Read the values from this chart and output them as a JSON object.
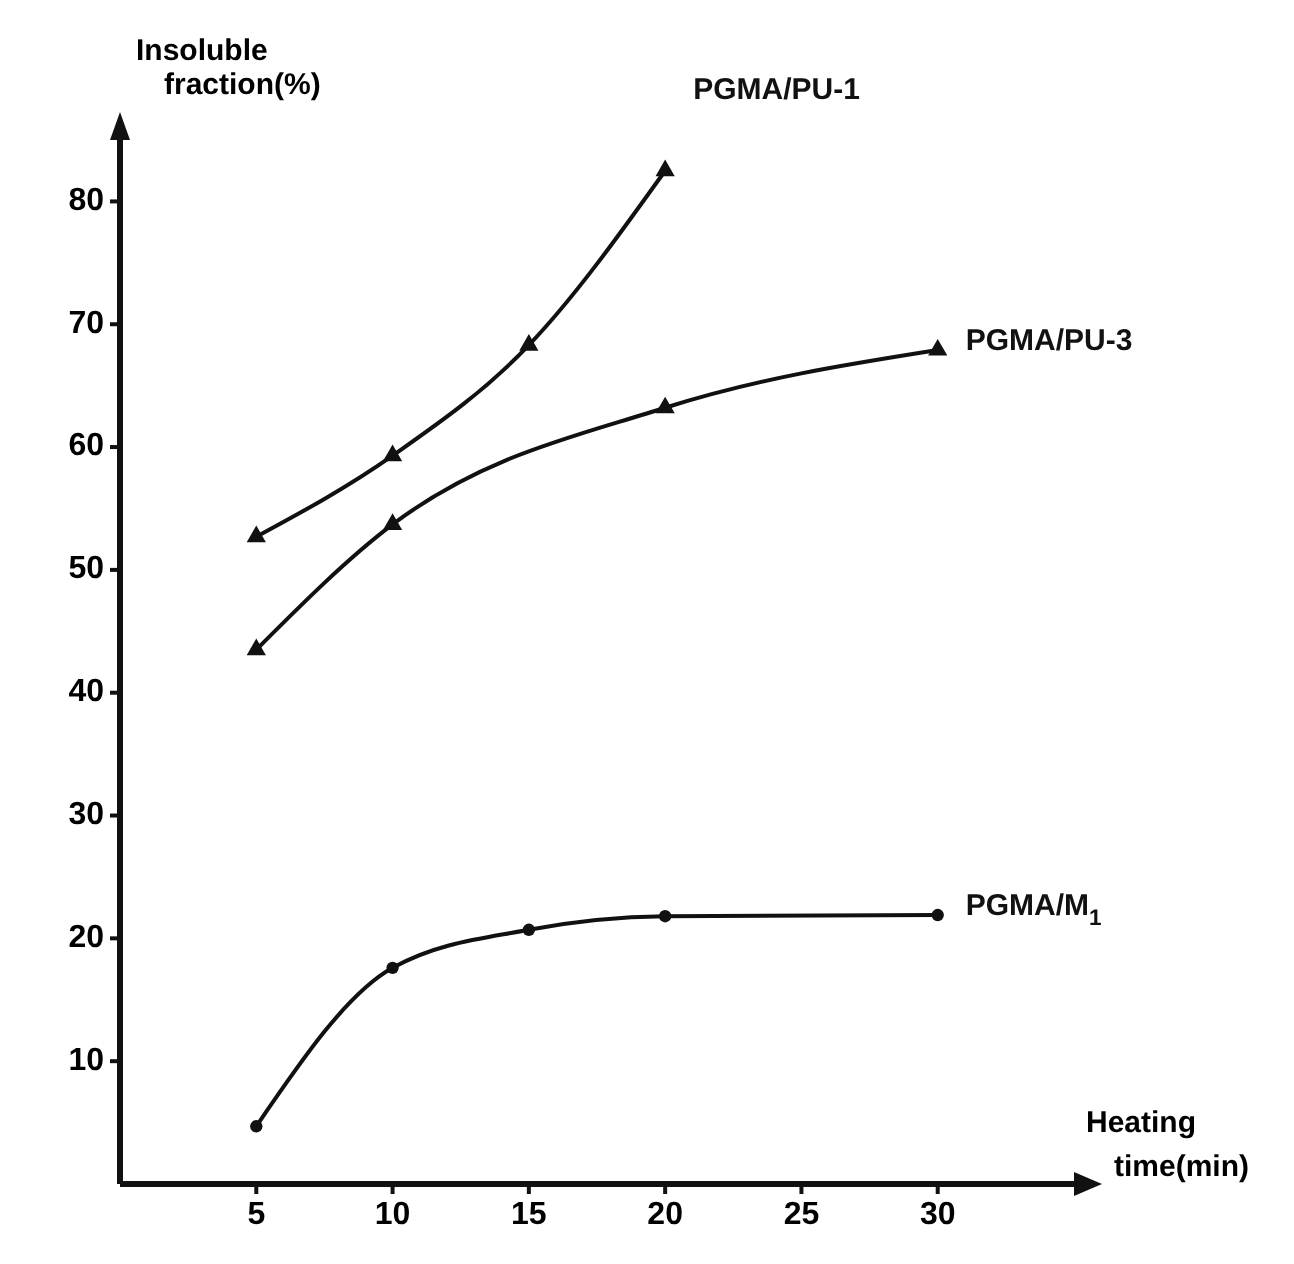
{
  "chart_data": {
    "type": "line",
    "xlabel": "Heating time(min)",
    "ylabel": "Insoluble fraction(%)",
    "xlim": [
      0,
      35
    ],
    "ylim": [
      0,
      85
    ],
    "xticks": [
      5,
      10,
      15,
      20,
      25,
      30
    ],
    "yticks": [
      10,
      20,
      30,
      40,
      50,
      60,
      70,
      80
    ],
    "grid": false,
    "line_style": "solid",
    "series": [
      {
        "name": "PGMA/PU-1",
        "color": "#111111",
        "marker": "triangle",
        "x": [
          5,
          10,
          15,
          20
        ],
        "values": [
          52.7,
          59.3,
          68.3,
          82.5
        ]
      },
      {
        "name": "PGMA/PU-3",
        "color": "#111111",
        "marker": "triangle",
        "x": [
          5,
          10,
          20,
          30
        ],
        "values": [
          43.5,
          53.7,
          63.2,
          67.9
        ]
      },
      {
        "name": "PGMA/M$_{1}$",
        "color": "#111111",
        "marker": "circle",
        "x": [
          5,
          10,
          15,
          20,
          30
        ],
        "values": [
          4.7,
          17.6,
          20.7,
          21.8,
          21.9
        ]
      }
    ]
  }
}
